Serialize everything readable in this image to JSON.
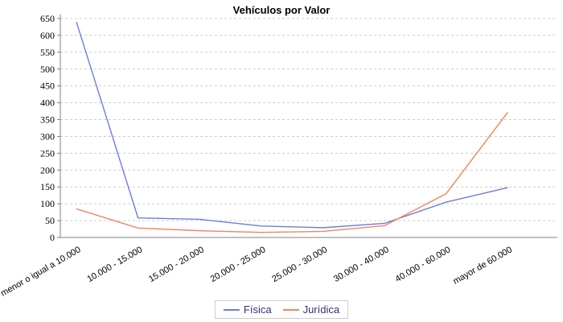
{
  "title": "Vehículos por Valor",
  "legend": {
    "items": [
      {
        "label": "Física",
        "color": "#6d7ce3"
      },
      {
        "label": "Jurídica",
        "color": "#f0865a"
      }
    ]
  },
  "chart_data": {
    "type": "line",
    "title": "Vehículos por Valor",
    "categories": [
      "menor o igual a 10.000",
      "10.000 - 15.000",
      "15.000 - 20.000",
      "20.000 - 25.000",
      "25.000 - 30.000",
      "30.000 - 40.000",
      "40.000 - 60.000",
      "mayor de 60.000"
    ],
    "series": [
      {
        "name": "Física",
        "color": "#6d7ce3",
        "values": [
          640,
          58,
          54,
          34,
          29,
          42,
          105,
          148
        ]
      },
      {
        "name": "Jurídica",
        "color": "#f0865a",
        "values": [
          85,
          28,
          20,
          15,
          18,
          35,
          130,
          372
        ]
      }
    ],
    "ylim": [
      0,
      650
    ],
    "ytick_step": 50,
    "xlabel": "",
    "ylabel": "",
    "grid": "horizontal-dashed",
    "legend_position": "bottom-center"
  },
  "colors": {
    "grid": "#cccccc",
    "axis": "#808080",
    "tick_label": "#000000",
    "legend_text": "#3a2d7e",
    "legend_border": "#cccccc",
    "background": "#ffffff"
  }
}
